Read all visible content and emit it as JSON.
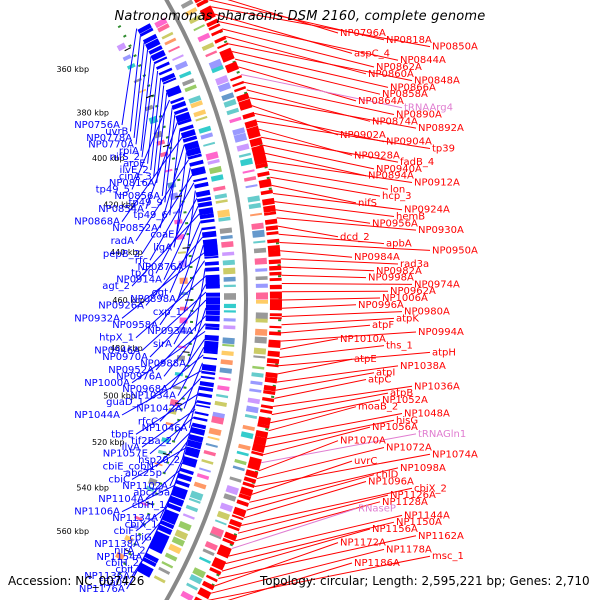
{
  "title": "Natronomonas pharaonis DSM 2160, complete genome",
  "footer": {
    "accession": "Accession: NC_007426",
    "summary": "Topology: circular; Length: 2,595,221 bp; Genes: 2,710"
  },
  "colors": {
    "forward_strand": "#ff0000",
    "reverse_strand": "#0000ff",
    "rna": "#e07cd0",
    "backbone": "#888888",
    "gc_dots": "#2e8b2e"
  },
  "kbp_ticks": [
    "360 kbp",
    "380 kbp",
    "400 kbp",
    "420 kbp",
    "440 kbp",
    "460 kbp",
    "480 kbp",
    "500 kbp",
    "520 kbp",
    "540 kbp",
    "560 kbp"
  ],
  "labels_right": [
    {
      "text": "NP0796A",
      "type": "gene"
    },
    {
      "text": "NP0818A",
      "type": "gene"
    },
    {
      "text": "NP0850A",
      "type": "gene"
    },
    {
      "text": "aspC_4",
      "type": "gene"
    },
    {
      "text": "NP0844A",
      "type": "gene"
    },
    {
      "text": "NP0862A",
      "type": "gene"
    },
    {
      "text": "NP0860A",
      "type": "gene"
    },
    {
      "text": "NP0848A",
      "type": "gene"
    },
    {
      "text": "NP0866A",
      "type": "gene"
    },
    {
      "text": "NP0858A",
      "type": "gene"
    },
    {
      "text": "NP0864A",
      "type": "gene"
    },
    {
      "text": "tRNAArg4",
      "type": "rna"
    },
    {
      "text": "NP0890A",
      "type": "gene"
    },
    {
      "text": "NP0874A",
      "type": "gene"
    },
    {
      "text": "NP0892A",
      "type": "gene"
    },
    {
      "text": "NP0902A",
      "type": "gene"
    },
    {
      "text": "NP0904A",
      "type": "gene"
    },
    {
      "text": "tp39",
      "type": "gene"
    },
    {
      "text": "NP0928A",
      "type": "gene"
    },
    {
      "text": "fadB_4",
      "type": "gene"
    },
    {
      "text": "NP0940A",
      "type": "gene"
    },
    {
      "text": "NP0894A",
      "type": "gene"
    },
    {
      "text": "NP0912A",
      "type": "gene"
    },
    {
      "text": "lon",
      "type": "gene"
    },
    {
      "text": "hcp_3",
      "type": "gene"
    },
    {
      "text": "nifS",
      "type": "gene"
    },
    {
      "text": "NP0924A",
      "type": "gene"
    },
    {
      "text": "hemB",
      "type": "gene"
    },
    {
      "text": "NP0956A",
      "type": "gene"
    },
    {
      "text": "NP0930A",
      "type": "gene"
    },
    {
      "text": "dcd_2",
      "type": "gene"
    },
    {
      "text": "apbA",
      "type": "gene"
    },
    {
      "text": "NP0950A",
      "type": "gene"
    },
    {
      "text": "NP0984A",
      "type": "gene"
    },
    {
      "text": "rad3a",
      "type": "gene"
    },
    {
      "text": "NP0982A",
      "type": "gene"
    },
    {
      "text": "NP0998A",
      "type": "gene"
    },
    {
      "text": "NP0974A",
      "type": "gene"
    },
    {
      "text": "NP0962A",
      "type": "gene"
    },
    {
      "text": "NP1006A",
      "type": "gene"
    },
    {
      "text": "NP0996A",
      "type": "gene"
    },
    {
      "text": "NP0980A",
      "type": "gene"
    },
    {
      "text": "atpK",
      "type": "gene"
    },
    {
      "text": "atpF",
      "type": "gene"
    },
    {
      "text": "NP0994A",
      "type": "gene"
    },
    {
      "text": "NP1010A",
      "type": "gene"
    },
    {
      "text": "ths_1",
      "type": "gene"
    },
    {
      "text": "atpH",
      "type": "gene"
    },
    {
      "text": "atpE",
      "type": "gene"
    },
    {
      "text": "NP1038A",
      "type": "gene"
    },
    {
      "text": "atpI",
      "type": "gene"
    },
    {
      "text": "atpC",
      "type": "gene"
    },
    {
      "text": "NP1036A",
      "type": "gene"
    },
    {
      "text": "atpB",
      "type": "gene"
    },
    {
      "text": "NP1052A",
      "type": "gene"
    },
    {
      "text": "moaB_2",
      "type": "gene"
    },
    {
      "text": "NP1048A",
      "type": "gene"
    },
    {
      "text": "hisG",
      "type": "gene"
    },
    {
      "text": "NP1056A",
      "type": "gene"
    },
    {
      "text": "tRNAGln1",
      "type": "rna"
    },
    {
      "text": "NP1070A",
      "type": "gene"
    },
    {
      "text": "NP1072A",
      "type": "gene"
    },
    {
      "text": "NP1074A",
      "type": "gene"
    },
    {
      "text": "uvrC",
      "type": "gene"
    },
    {
      "text": "NP1098A",
      "type": "gene"
    },
    {
      "text": "chlD",
      "type": "gene"
    },
    {
      "text": "NP1096A",
      "type": "gene"
    },
    {
      "text": "cbiX_2",
      "type": "gene"
    },
    {
      "text": "NP1126A",
      "type": "gene"
    },
    {
      "text": "NP1128A",
      "type": "gene"
    },
    {
      "text": "RNaseP",
      "type": "rna"
    },
    {
      "text": "NP1144A",
      "type": "gene"
    },
    {
      "text": "NP1150A",
      "type": "gene"
    },
    {
      "text": "NP1156A",
      "type": "gene"
    },
    {
      "text": "NP1162A",
      "type": "gene"
    },
    {
      "text": "NP1172A",
      "type": "gene"
    },
    {
      "text": "NP1178A",
      "type": "gene"
    },
    {
      "text": "msc_1",
      "type": "gene"
    },
    {
      "text": "NP1186A",
      "type": "gene"
    }
  ],
  "labels_left": [
    {
      "text": "NP0756A"
    },
    {
      "text": "uvrB"
    },
    {
      "text": "NP0778A"
    },
    {
      "text": "NP0770A"
    },
    {
      "text": "rpiA"
    },
    {
      "text": "nifS_2"
    },
    {
      "text": "aroE"
    },
    {
      "text": "ilvE_2"
    },
    {
      "text": "cinA_3"
    },
    {
      "text": "NP0816A"
    },
    {
      "text": "tp49_5"
    },
    {
      "text": "NP0856A"
    },
    {
      "text": "tp49_9"
    },
    {
      "text": "NP0854A"
    },
    {
      "text": "tp49_6"
    },
    {
      "text": "NP0868A"
    },
    {
      "text": "NP0852A"
    },
    {
      "text": "coaE"
    },
    {
      "text": "radA"
    },
    {
      "text": "ligA"
    },
    {
      "text": "pepB_2"
    },
    {
      "text": "rfc"
    },
    {
      "text": "NP0876A"
    },
    {
      "text": "tp20"
    },
    {
      "text": "NP0914A"
    },
    {
      "text": "agt_2"
    },
    {
      "text": "ogt"
    },
    {
      "text": "NP0898A"
    },
    {
      "text": "NP0926A"
    },
    {
      "text": "cxp_1"
    },
    {
      "text": "NP0932A"
    },
    {
      "text": "NP0958A"
    },
    {
      "text": "NP0934A"
    },
    {
      "text": "htpX_1"
    },
    {
      "text": "sirA"
    },
    {
      "text": "NP0946A"
    },
    {
      "text": "NP0970A"
    },
    {
      "text": "NP0988A"
    },
    {
      "text": "NP0952A"
    },
    {
      "text": "NP0976A"
    },
    {
      "text": "NP1000A"
    },
    {
      "text": "NP0968A"
    },
    {
      "text": "NP1034A"
    },
    {
      "text": "guaD_1"
    },
    {
      "text": "NP1042A"
    },
    {
      "text": "NP1044A"
    },
    {
      "text": "rfcC"
    },
    {
      "text": "NP1046A"
    },
    {
      "text": "tbpE"
    },
    {
      "text": "tif2Ba_2"
    },
    {
      "text": "ilvA"
    },
    {
      "text": "NP1057E"
    },
    {
      "text": "hsp20_2"
    },
    {
      "text": "cbiE_cobN"
    },
    {
      "text": "abc25p"
    },
    {
      "text": "cbiC"
    },
    {
      "text": "NP1102A"
    },
    {
      "text": "abc25a"
    },
    {
      "text": "NP1104A"
    },
    {
      "text": "cbiH_1"
    },
    {
      "text": "NP1106A"
    },
    {
      "text": "NP1134A"
    },
    {
      "text": "cbiX_1"
    },
    {
      "text": "cbiF"
    },
    {
      "text": "cbiG"
    },
    {
      "text": "NP1138A"
    },
    {
      "text": "nirA_2"
    },
    {
      "text": "NP1154A"
    },
    {
      "text": "cbiH_2"
    },
    {
      "text": "cbiL"
    },
    {
      "text": "NP1136A"
    },
    {
      "text": "tpa07"
    },
    {
      "text": "NP1176A"
    }
  ]
}
